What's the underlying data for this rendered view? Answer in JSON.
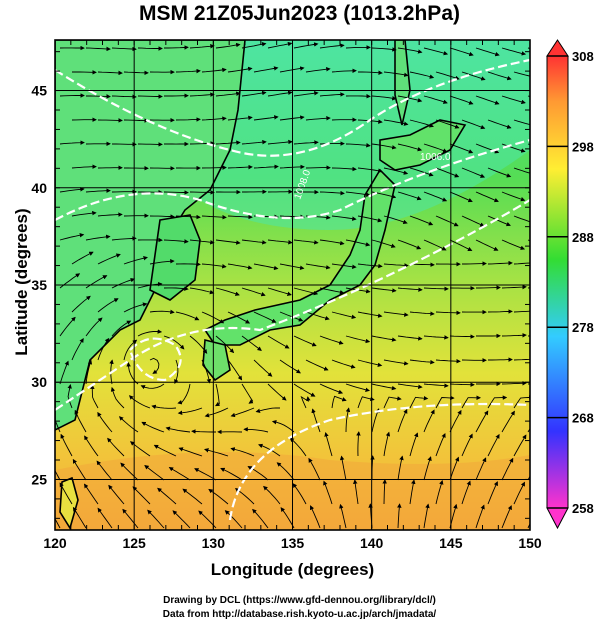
{
  "title": "MSM 21Z05Jun2023 (1013.2hPa)",
  "x_axis_label": "Longitude (degrees)",
  "y_axis_label": "Latitude  (degrees)",
  "x_ticks": [
    120,
    125,
    130,
    135,
    140,
    145,
    150
  ],
  "y_ticks": [
    25,
    30,
    35,
    40,
    45
  ],
  "x_range": [
    120,
    150
  ],
  "y_range": [
    22.4,
    47.6
  ],
  "colorbar": {
    "labels": [
      308,
      298,
      288,
      278,
      268,
      258
    ],
    "range": [
      258,
      308
    ],
    "colors": [
      "#ff33cc",
      "#3333ff",
      "#33ccff",
      "#33dd33",
      "#ffee33",
      "#ff9933",
      "#ff3333"
    ]
  },
  "contour_labels": [
    "1006.0",
    "1008.0"
  ],
  "credits": [
    "Drawing by DCL (https://www.gfd-dennou.org/library/dcl/)",
    "Data from http://database.rish.kyoto-u.ac.jp/arch/jmadata/"
  ]
}
